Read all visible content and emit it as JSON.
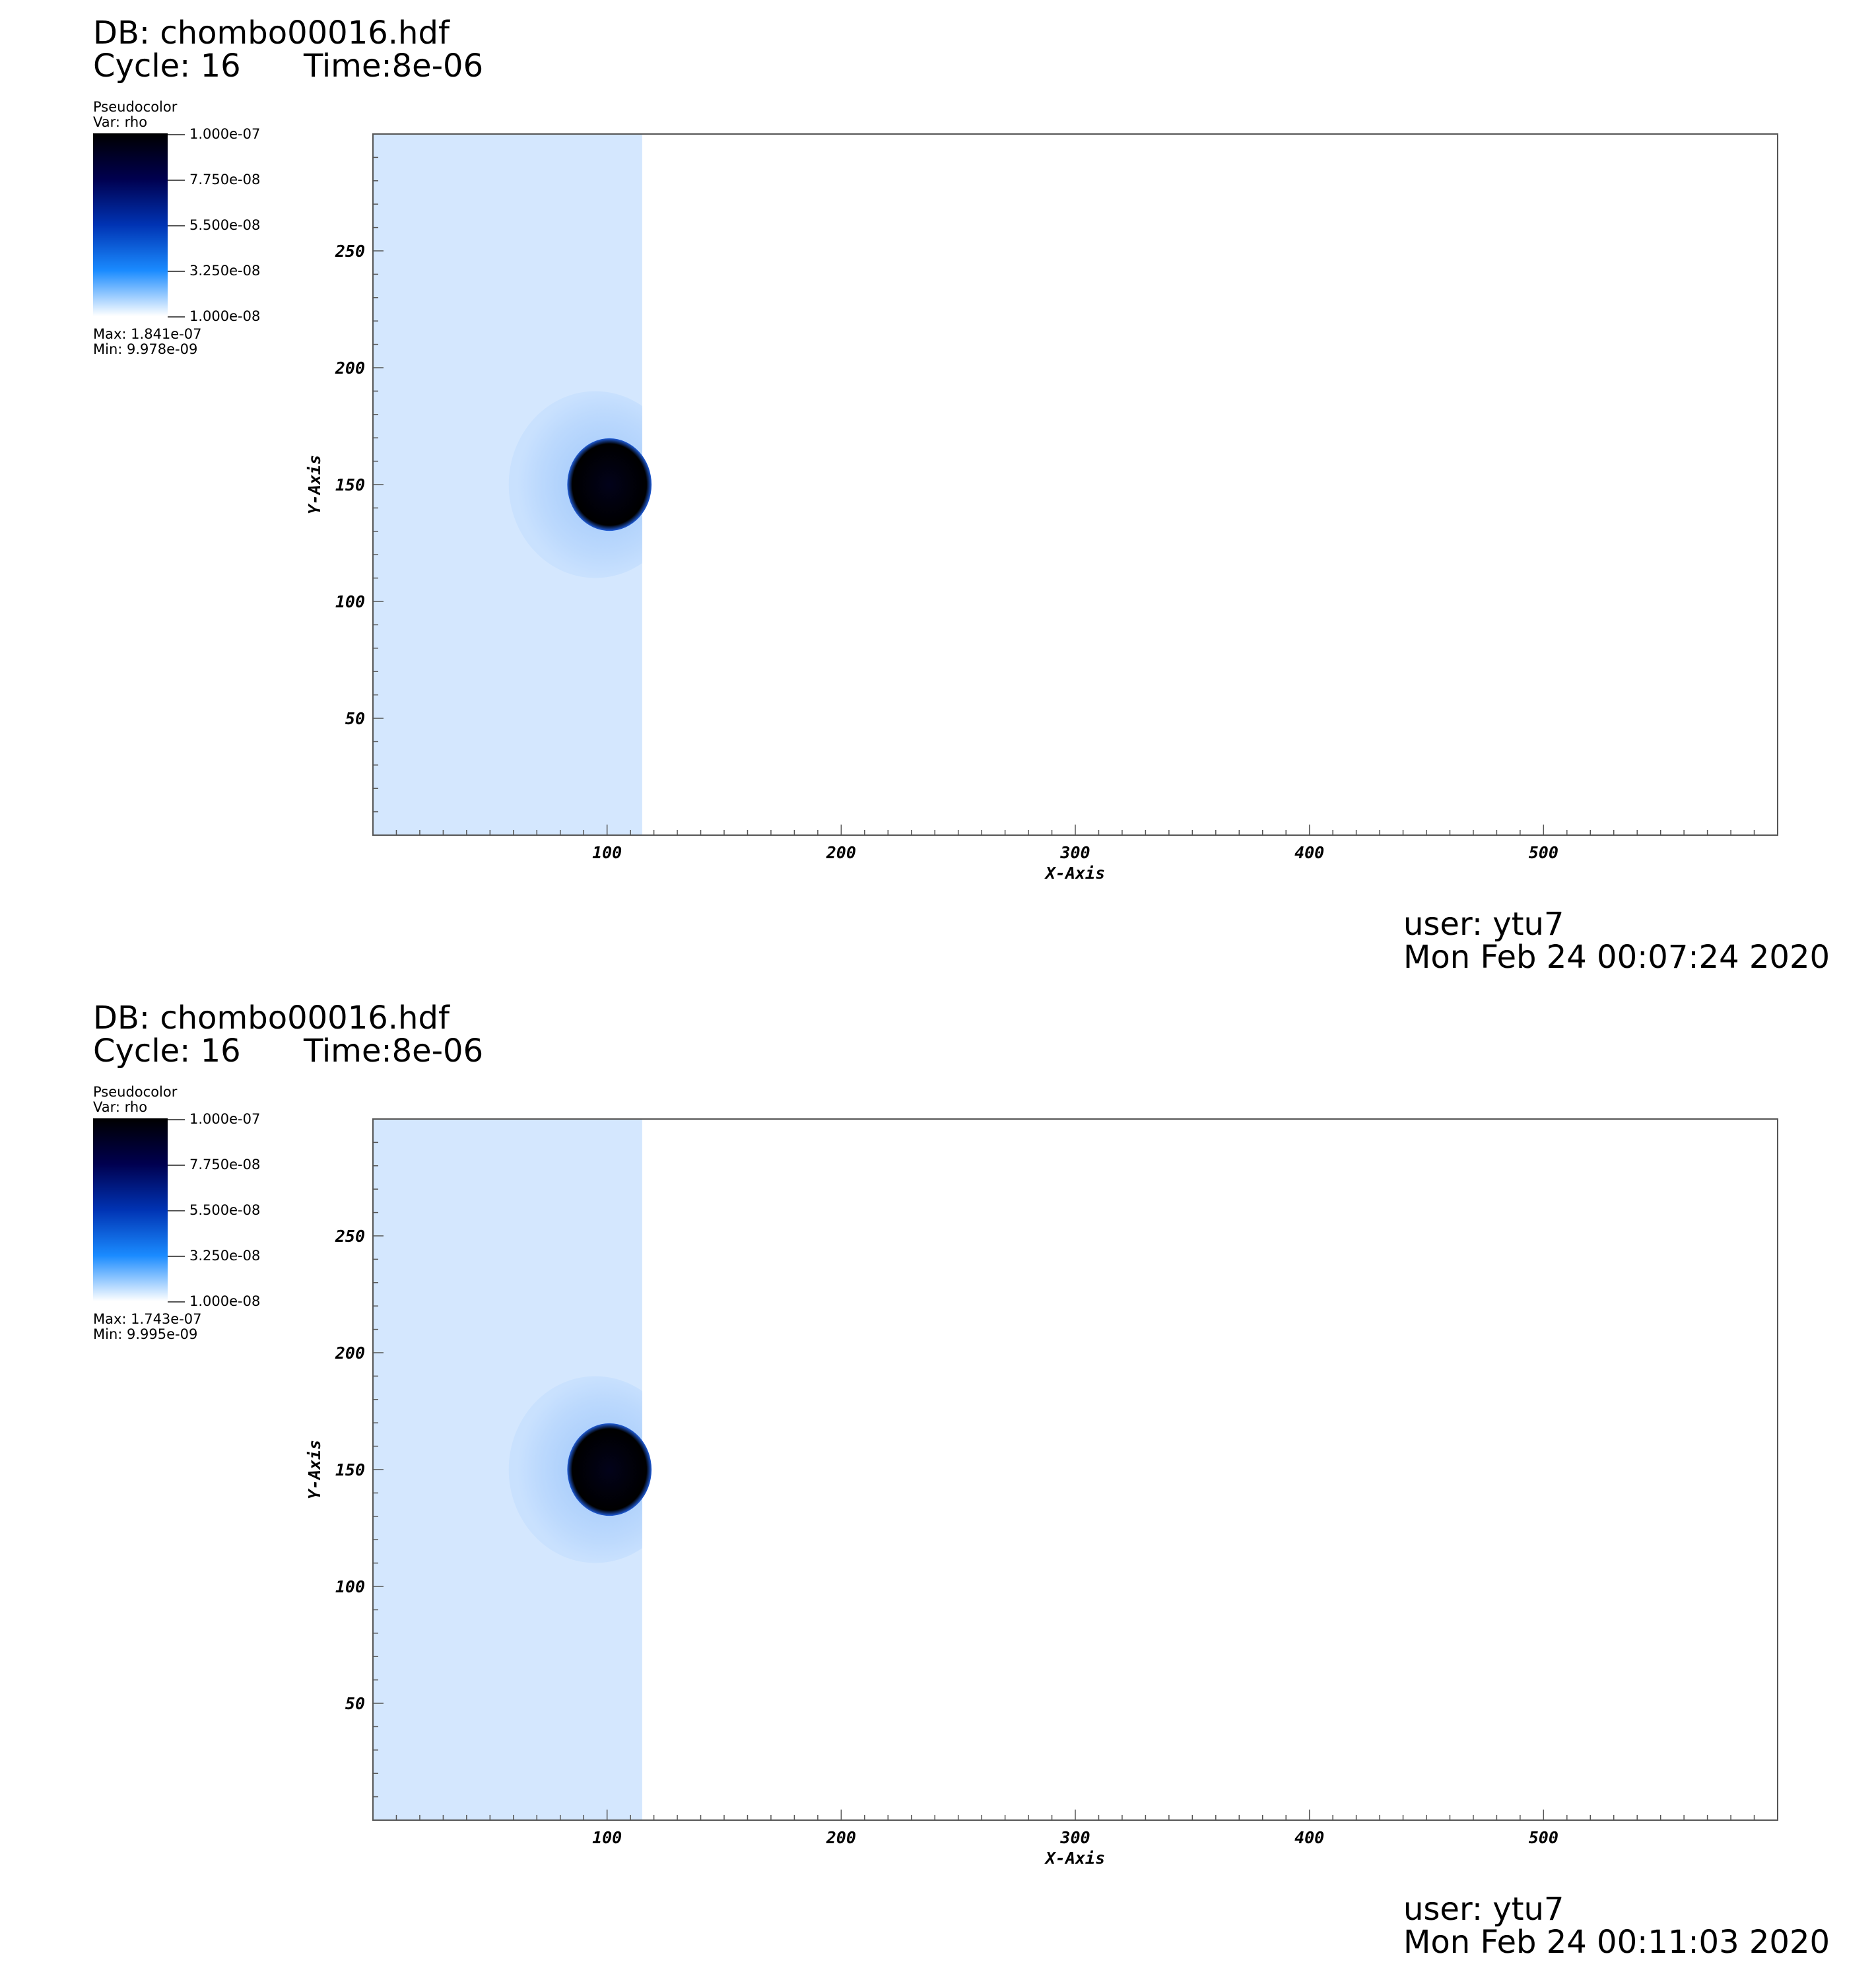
{
  "panels": [
    {
      "db": "DB: chombo00016.hdf",
      "cycle": "Cycle: 16",
      "time": "Time:8e-06",
      "legend": {
        "title": "Pseudocolor",
        "var": "Var: rho",
        "ticks": [
          "1.000e-07",
          "7.750e-08",
          "5.500e-08",
          "3.250e-08",
          "1.000e-08"
        ],
        "max": "Max:  1.841e-07",
        "min": "Min:  9.978e-09"
      },
      "user": "user: ytu7",
      "date": "Mon Feb 24 00:07:24 2020"
    },
    {
      "db": "DB: chombo00016.hdf",
      "cycle": "Cycle: 16",
      "time": "Time:8e-06",
      "legend": {
        "title": "Pseudocolor",
        "var": "Var: rho",
        "ticks": [
          "1.000e-07",
          "7.750e-08",
          "5.500e-08",
          "3.250e-08",
          "1.000e-08"
        ],
        "max": "Max:  1.743e-07",
        "min": "Min:  9.995e-09"
      },
      "user": "user: ytu7",
      "date": "Mon Feb 24 00:11:03 2020"
    }
  ],
  "chart_data": [
    {
      "type": "heatmap",
      "xlabel": "X-Axis",
      "ylabel": "Y-Axis",
      "xlim": [
        0,
        600
      ],
      "ylim": [
        0,
        300
      ],
      "x_ticks": [
        100,
        200,
        300,
        400,
        500
      ],
      "y_ticks": [
        50,
        100,
        150,
        200,
        250
      ],
      "x_tick_labels": [
        "100",
        "200",
        "300",
        "400",
        "500"
      ],
      "y_tick_labels": [
        "50",
        "100",
        "150",
        "200",
        "250"
      ],
      "colorbar_range": [
        1e-08,
        1e-07
      ],
      "colors": {
        "background_region": "#d4e7fe",
        "shock_region": "#bcd9fd",
        "dense_core": "#000000",
        "ambient": "#ffffff"
      },
      "regions": {
        "shocked_slab_x": [
          0,
          115
        ],
        "bow_shock_center": [
          95,
          150
        ],
        "bow_shock_radius": 37,
        "dense_cloud_center": [
          101,
          150
        ],
        "dense_cloud_radius": 18
      }
    },
    {
      "type": "heatmap",
      "xlabel": "X-Axis",
      "ylabel": "Y-Axis",
      "xlim": [
        0,
        600
      ],
      "ylim": [
        0,
        300
      ],
      "x_ticks": [
        100,
        200,
        300,
        400,
        500
      ],
      "y_ticks": [
        50,
        100,
        150,
        200,
        250
      ],
      "x_tick_labels": [
        "100",
        "200",
        "300",
        "400",
        "500"
      ],
      "y_tick_labels": [
        "50",
        "100",
        "150",
        "200",
        "250"
      ],
      "colorbar_range": [
        1e-08,
        1e-07
      ],
      "colors": {
        "background_region": "#d4e7fe",
        "shock_region": "#bcd9fd",
        "dense_core": "#000000",
        "ambient": "#ffffff"
      },
      "regions": {
        "shocked_slab_x": [
          0,
          115
        ],
        "bow_shock_center": [
          95,
          150
        ],
        "bow_shock_radius": 37,
        "dense_cloud_center": [
          101,
          150
        ],
        "dense_cloud_radius": 18
      }
    }
  ]
}
